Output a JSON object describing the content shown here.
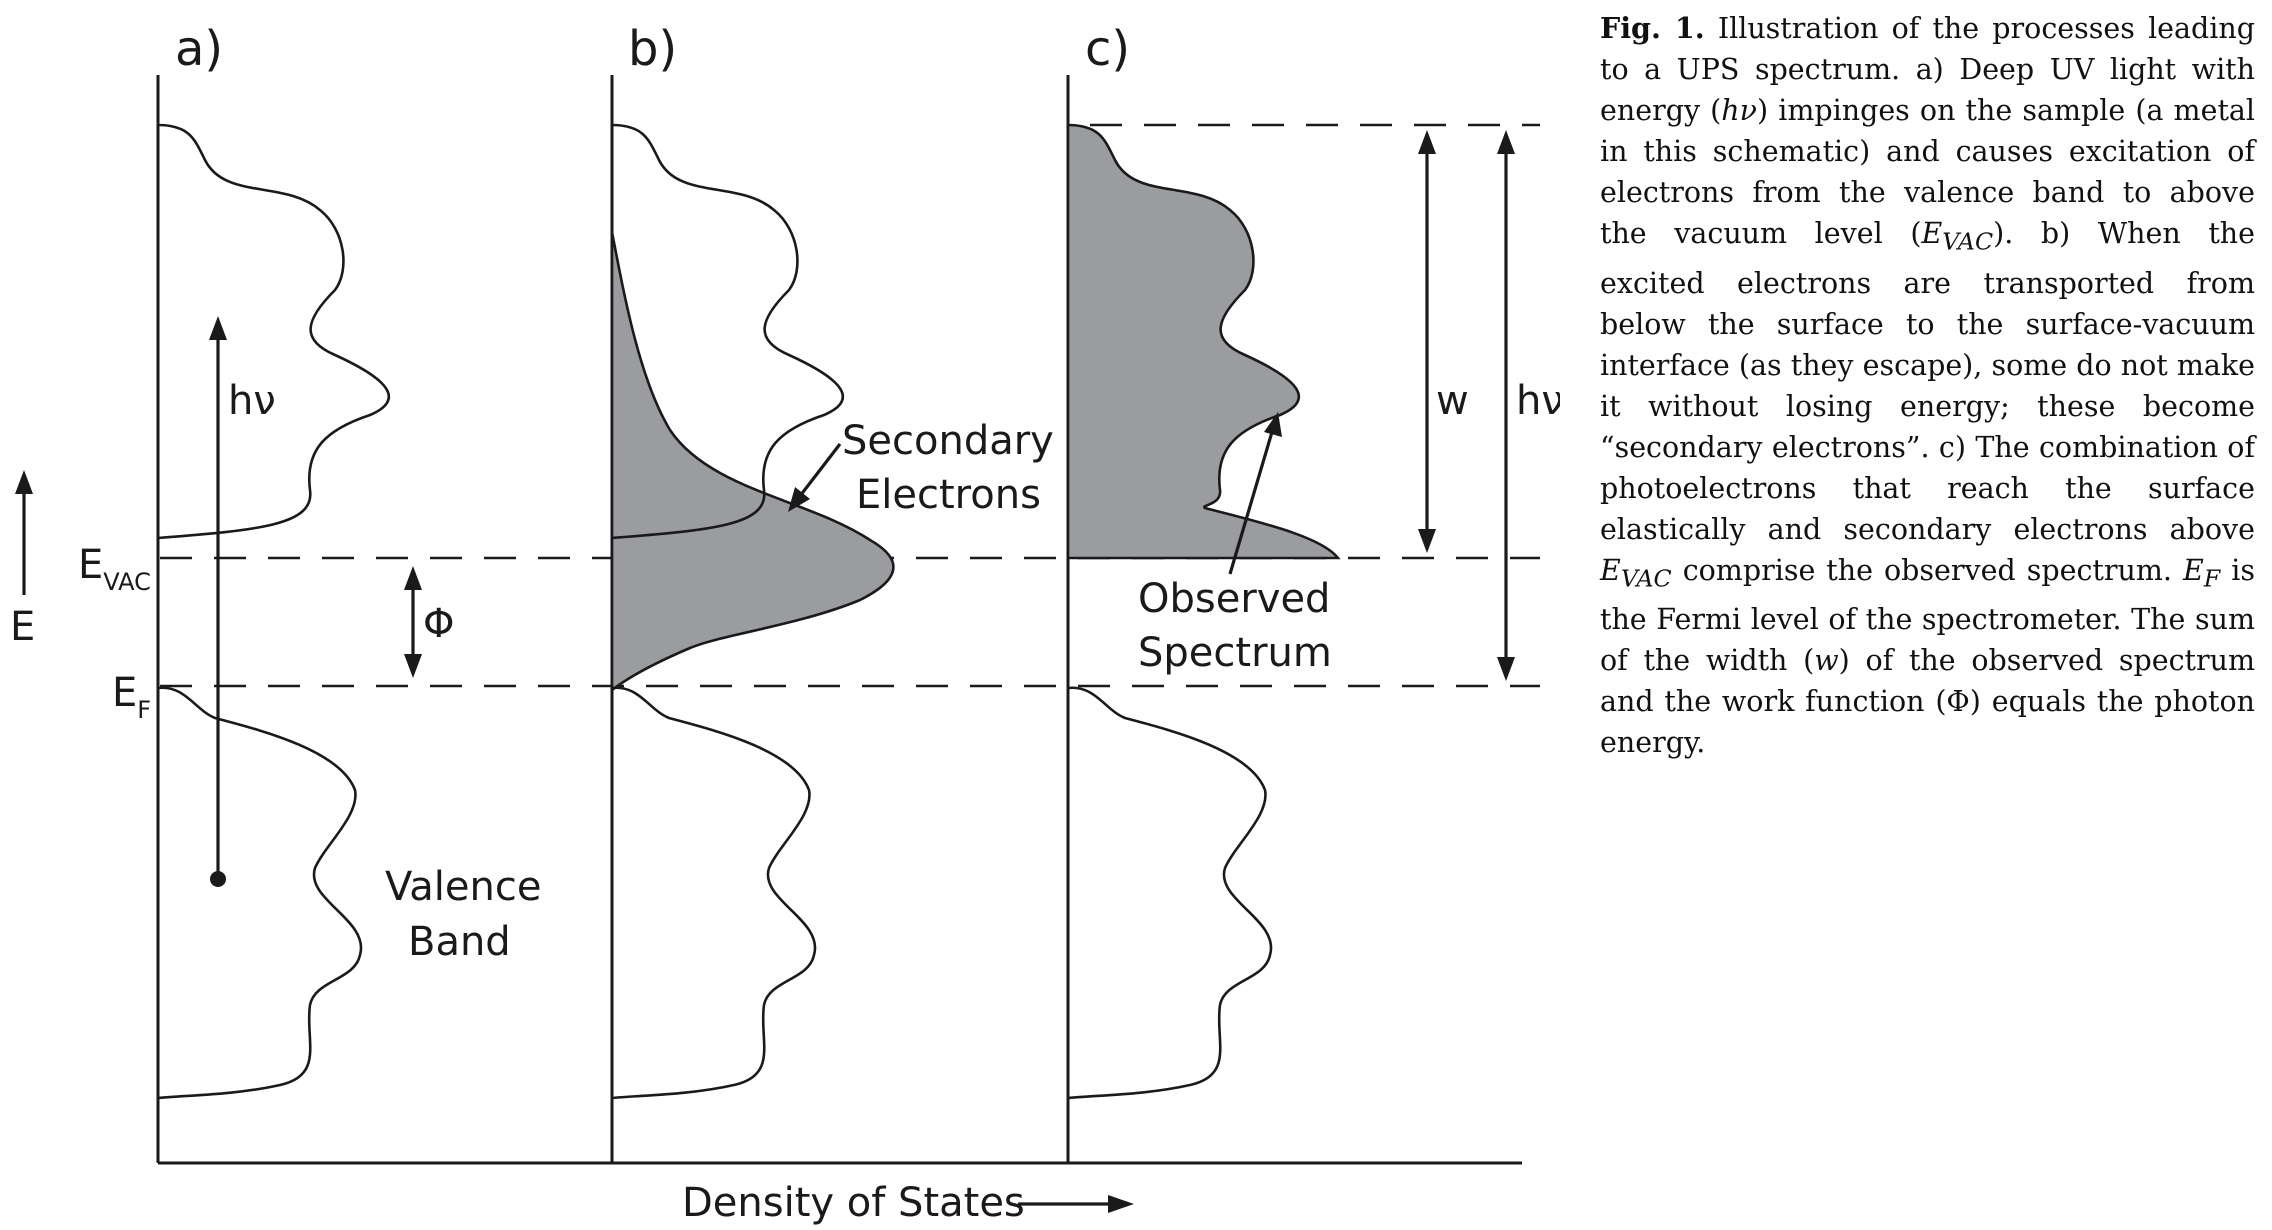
{
  "figure": {
    "panels": [
      {
        "label": "a)"
      },
      {
        "label": "b)"
      },
      {
        "label": "c)"
      }
    ],
    "axis": {
      "y_label": "E",
      "x_label": "Density of States",
      "evac_main": "E",
      "evac_sub": "VAC",
      "ef_main": "E",
      "ef_sub": "F"
    },
    "annotations": {
      "hv_a": "hν",
      "phi": "Φ",
      "valence_line1": "Valence",
      "valence_line2": "Band",
      "secondary_line1": "Secondary",
      "secondary_line2": "Electrons",
      "observed_line1": "Observed",
      "observed_line2": "Spectrum",
      "w": "w",
      "hv_c": "hν"
    },
    "colors": {
      "line": "#1a1a1a",
      "fill": "#9a9ca0"
    }
  },
  "caption": {
    "fig_label": "Fig. 1.",
    "seg1": " Illustration of the processes leading to a UPS spectrum. a) Deep UV light with energy (",
    "hv": "hν",
    "seg2": ") impinges on the sample (a metal in this schematic) and causes excitation of electrons from the valence band to above the vacuum level (",
    "evac_main": "E",
    "evac_sub": "VAC",
    "seg3": "). b) When the excited electrons are transported from below the surface to the surface-vacuum interface (as they escape), some do not make it without losing energy; these become “secondary electrons”. c) The combination of photoelectrons that reach the surface elastically and secondary electrons above ",
    "evac2_main": "E",
    "evac2_sub": "VAC",
    "seg4": " comprise the observed spectrum. ",
    "ef_main": "E",
    "ef_sub": "F",
    "seg5": " is the Fermi level of the spectrometer. The sum of the width (",
    "w": "w",
    "seg6": ") of the observed spectrum and the work function (Φ) equals the photon energy."
  }
}
